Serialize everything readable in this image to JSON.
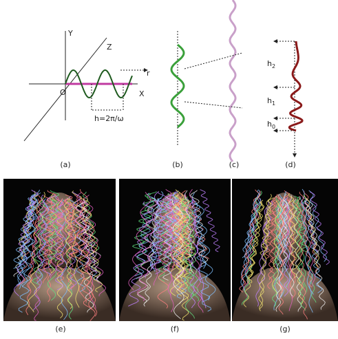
{
  "diagram": {
    "panel_a": {
      "y_axis": "Y",
      "z_axis": "Z",
      "radius": "r",
      "origin": "O",
      "x_axis": "X",
      "period": "h=2π/ω",
      "caption": "(a)"
    },
    "panel_b": {
      "caption": "(b)"
    },
    "panel_c": {
      "caption": "(c)"
    },
    "panel_d": {
      "h2": {
        "base": "h",
        "sub": "2"
      },
      "h1": {
        "base": "h",
        "sub": "1"
      },
      "h0": {
        "base": "h",
        "sub": "0"
      },
      "caption": "(d)"
    }
  },
  "renders": {
    "e": {
      "caption": "(e)"
    },
    "f": {
      "caption": "(f)"
    },
    "g": {
      "caption": "(g)"
    }
  }
}
